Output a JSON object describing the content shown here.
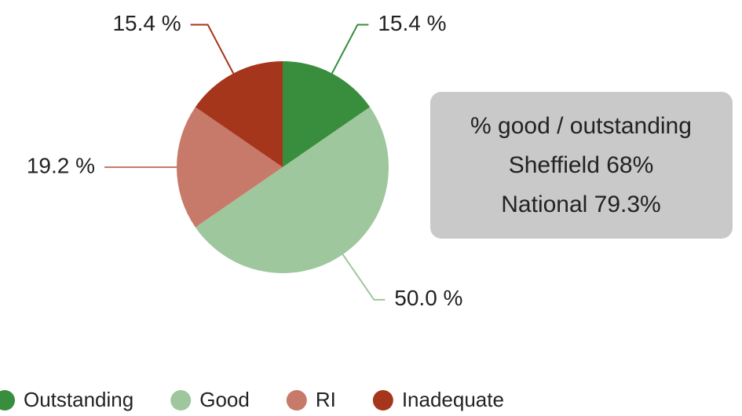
{
  "chart_data": {
    "type": "pie",
    "categories": [
      "Outstanding",
      "Good",
      "RI",
      "Inadequate"
    ],
    "values": [
      15.4,
      50.0,
      19.2,
      15.4
    ],
    "value_labels": [
      "15.4 %",
      "50.0 %",
      "19.2 %",
      "15.4 %"
    ],
    "colors": [
      "#388e3c",
      "#9fc79d",
      "#c77a69",
      "#a6361b"
    ],
    "annotation": [
      "% good / outstanding",
      "Sheffield 68%",
      "National 79.3%"
    ],
    "legend": "bottom"
  }
}
